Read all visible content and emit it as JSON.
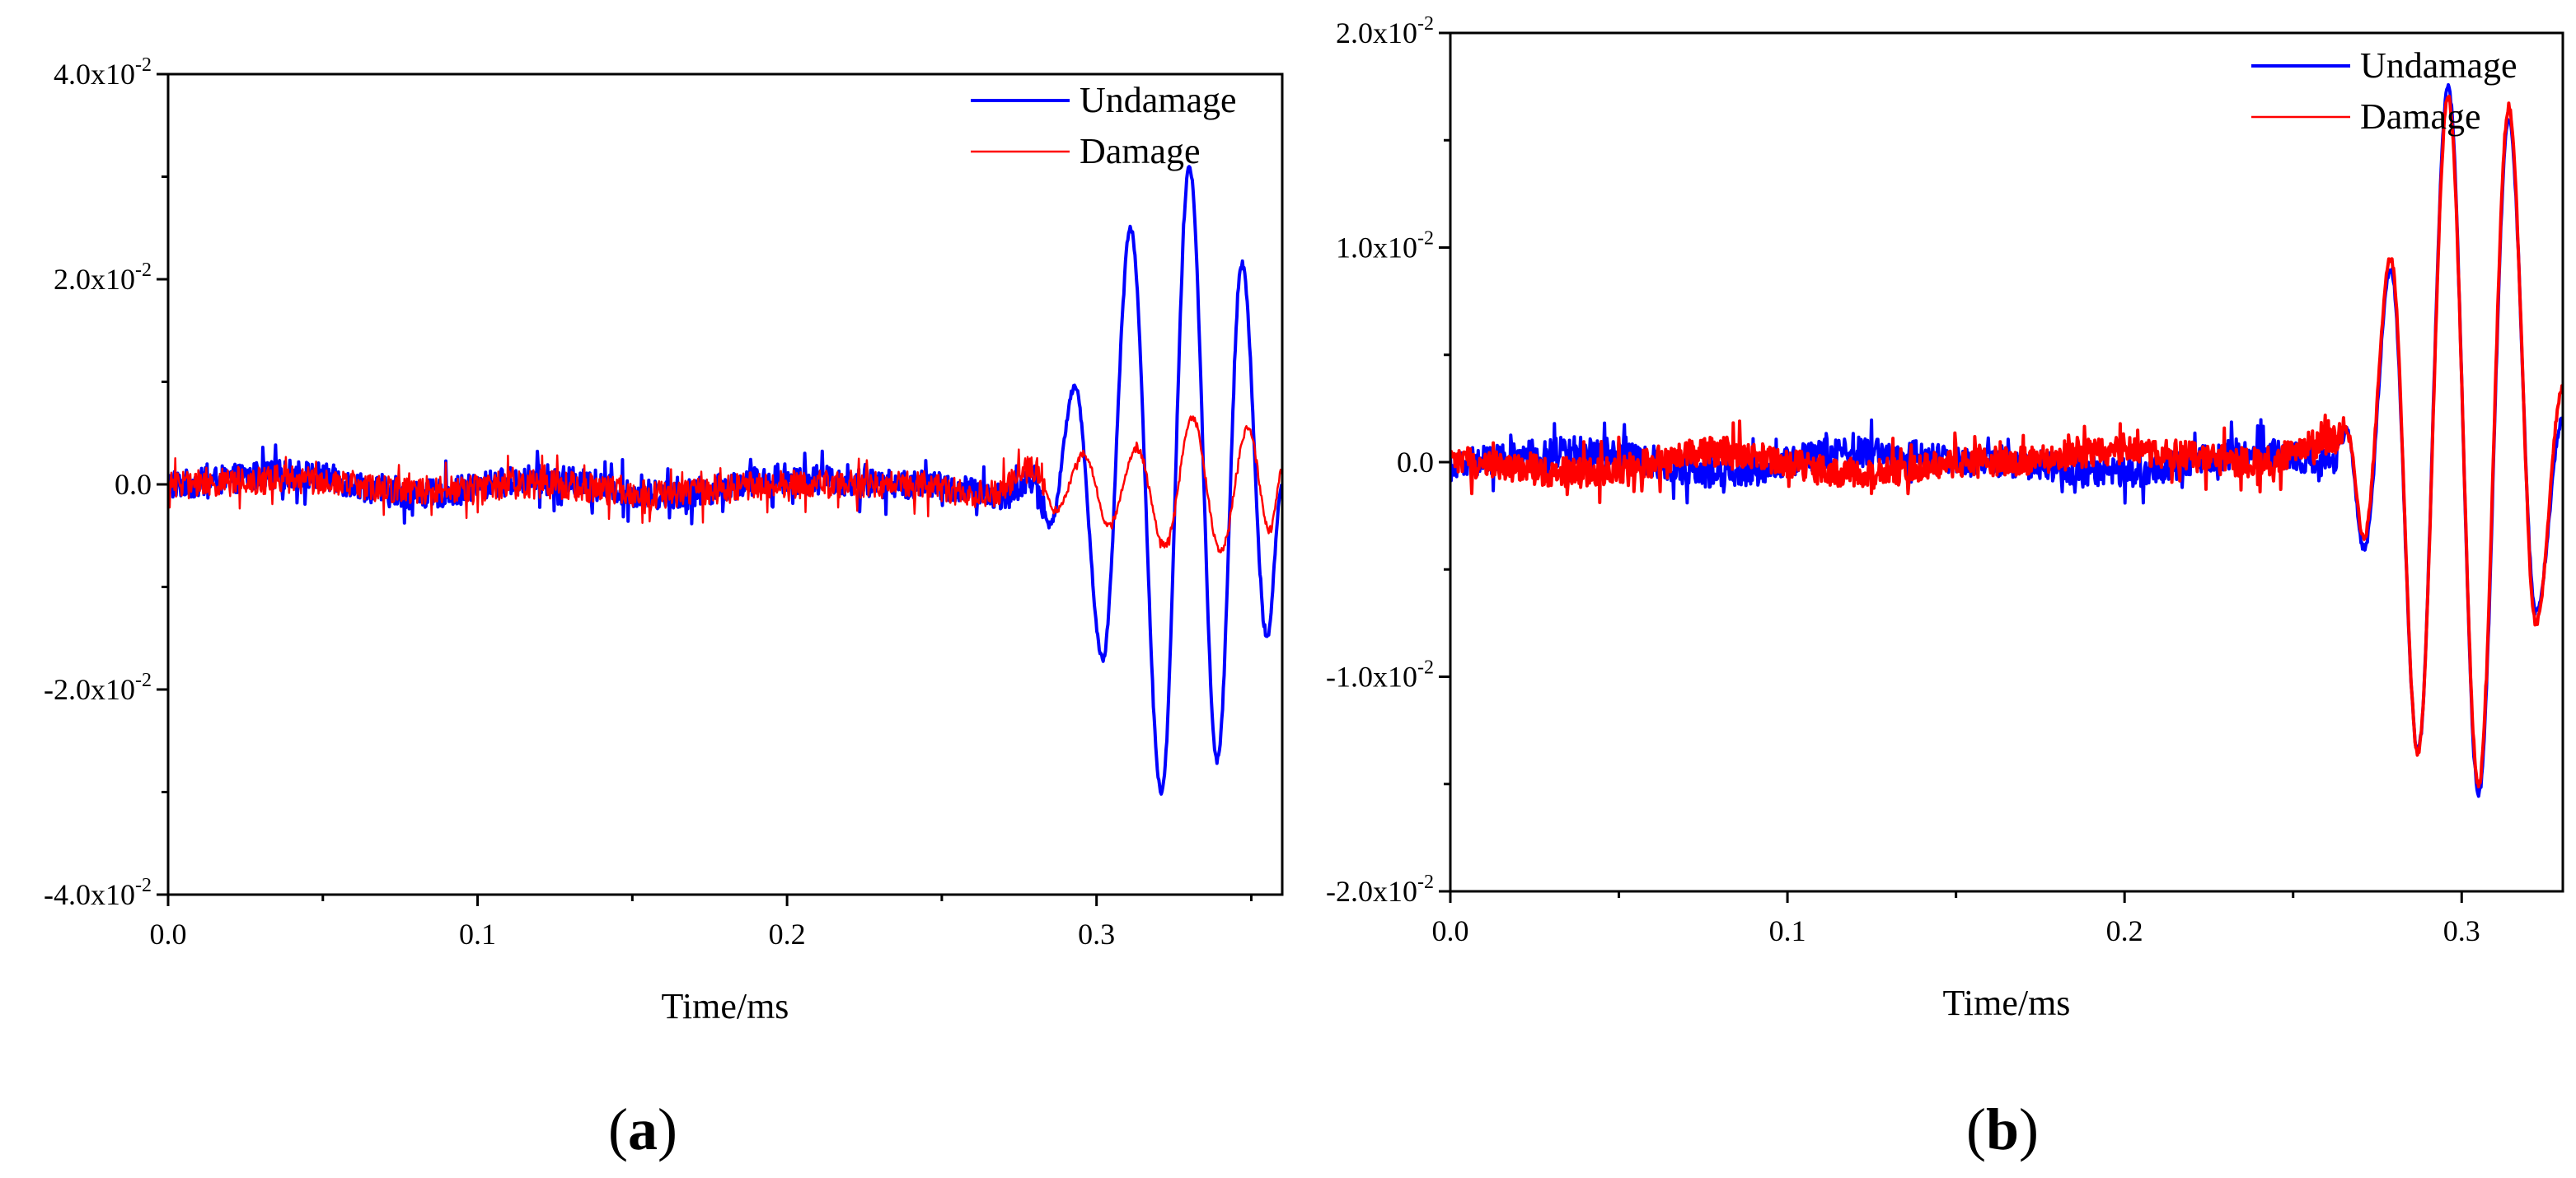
{
  "colors": {
    "undamage": "#0000ff",
    "damage": "#ff0000",
    "axis": "#000000"
  },
  "chart_data": [
    {
      "type": "line",
      "panel_label": "(a)",
      "panel_letter": "a",
      "xlabel": "Time/ms",
      "ylabel": "",
      "xlim": [
        0,
        0.36
      ],
      "ylim": [
        -0.04,
        0.04
      ],
      "xticks": [
        {
          "value": 0.0,
          "label": "0.0"
        },
        {
          "value": 0.1,
          "label": "0.1"
        },
        {
          "value": 0.2,
          "label": "0.2"
        },
        {
          "value": 0.3,
          "label": "0.3"
        }
      ],
      "yticks": [
        {
          "value": -0.04,
          "mant": "-4.0x10",
          "exp": "-2"
        },
        {
          "value": -0.02,
          "mant": "-2.0x10",
          "exp": "-2"
        },
        {
          "value": 0.0,
          "mant": "0.0",
          "exp": ""
        },
        {
          "value": 0.02,
          "mant": "2.0x10",
          "exp": "-2"
        },
        {
          "value": 0.04,
          "mant": "4.0x10",
          "exp": "-2"
        }
      ],
      "legend_position": "top-right",
      "series": [
        {
          "name": "Undamage",
          "color": "#0000ff",
          "width": 4,
          "points": [
            [
              0,
              0
            ],
            [
              0.04,
              0.001
            ],
            [
              0.08,
              -0.001
            ],
            [
              0.12,
              0.0005
            ],
            [
              0.16,
              -0.001
            ],
            [
              0.2,
              0.0005
            ],
            [
              0.24,
              0
            ],
            [
              0.27,
              -0.001
            ],
            [
              0.28,
              0.0005
            ],
            [
              0.285,
              -0.004
            ],
            [
              0.293,
              0.0095
            ],
            [
              0.302,
              -0.017
            ],
            [
              0.311,
              0.025
            ],
            [
              0.321,
              -0.03
            ],
            [
              0.33,
              0.031
            ],
            [
              0.339,
              -0.027
            ],
            [
              0.347,
              0.0215
            ],
            [
              0.355,
              -0.015
            ],
            [
              0.36,
              0.0
            ]
          ]
        },
        {
          "name": "Damage",
          "color": "#ff0000",
          "width": 2.5,
          "points": [
            [
              0,
              0
            ],
            [
              0.04,
              0.0005
            ],
            [
              0.08,
              -0.0005
            ],
            [
              0.12,
              0
            ],
            [
              0.16,
              -0.001
            ],
            [
              0.2,
              0
            ],
            [
              0.24,
              0
            ],
            [
              0.265,
              -0.001
            ],
            [
              0.28,
              0.0015
            ],
            [
              0.287,
              -0.0025
            ],
            [
              0.296,
              0.003
            ],
            [
              0.304,
              -0.004
            ],
            [
              0.313,
              0.0035
            ],
            [
              0.322,
              -0.006
            ],
            [
              0.331,
              0.0065
            ],
            [
              0.34,
              -0.0065
            ],
            [
              0.349,
              0.0055
            ],
            [
              0.356,
              -0.0045
            ],
            [
              0.36,
              0.0015
            ]
          ]
        }
      ]
    },
    {
      "type": "line",
      "panel_label": "(b)",
      "panel_letter": "b",
      "xlabel": "Time/ms",
      "ylabel": "",
      "xlim": [
        0,
        0.33
      ],
      "ylim": [
        -0.02,
        0.02
      ],
      "xticks": [
        {
          "value": 0.0,
          "label": "0.0"
        },
        {
          "value": 0.1,
          "label": "0.1"
        },
        {
          "value": 0.2,
          "label": "0.2"
        },
        {
          "value": 0.3,
          "label": "0.3"
        }
      ],
      "yticks": [
        {
          "value": -0.02,
          "mant": "-2.0x10",
          "exp": "-2"
        },
        {
          "value": -0.01,
          "mant": "-1.0x10",
          "exp": "-2"
        },
        {
          "value": 0.0,
          "mant": "0.0",
          "exp": ""
        },
        {
          "value": 0.01,
          "mant": "1.0x10",
          "exp": "-2"
        },
        {
          "value": 0.02,
          "mant": "2.0x10",
          "exp": "-2"
        }
      ],
      "legend_position": "top-right",
      "series": [
        {
          "name": "Undamage",
          "color": "#0000ff",
          "width": 4,
          "points": [
            [
              0,
              0
            ],
            [
              0.04,
              0.0005
            ],
            [
              0.08,
              -0.0005
            ],
            [
              0.12,
              0.0005
            ],
            [
              0.16,
              0
            ],
            [
              0.2,
              -0.0005
            ],
            [
              0.24,
              0.0005
            ],
            [
              0.262,
              0
            ],
            [
              0.266,
              0.0015
            ],
            [
              0.271,
              -0.004
            ],
            [
              0.279,
              0.009
            ],
            [
              0.287,
              -0.0135
            ],
            [
              0.296,
              0.0175
            ],
            [
              0.305,
              -0.0155
            ],
            [
              0.314,
              0.016
            ],
            [
              0.322,
              -0.007
            ],
            [
              0.33,
              0.002
            ]
          ]
        },
        {
          "name": "Damage",
          "color": "#ff0000",
          "width": 4,
          "points": [
            [
              0,
              0
            ],
            [
              0.04,
              -0.0005
            ],
            [
              0.08,
              0.0005
            ],
            [
              0.12,
              -0.0005
            ],
            [
              0.16,
              0
            ],
            [
              0.2,
              0.0005
            ],
            [
              0.24,
              0
            ],
            [
              0.262,
              0.001
            ],
            [
              0.266,
              0.0015
            ],
            [
              0.271,
              -0.0035
            ],
            [
              0.279,
              0.0095
            ],
            [
              0.287,
              -0.0135
            ],
            [
              0.296,
              0.017
            ],
            [
              0.305,
              -0.015
            ],
            [
              0.314,
              0.0165
            ],
            [
              0.322,
              -0.0075
            ],
            [
              0.33,
              0.0035
            ]
          ]
        }
      ]
    }
  ]
}
